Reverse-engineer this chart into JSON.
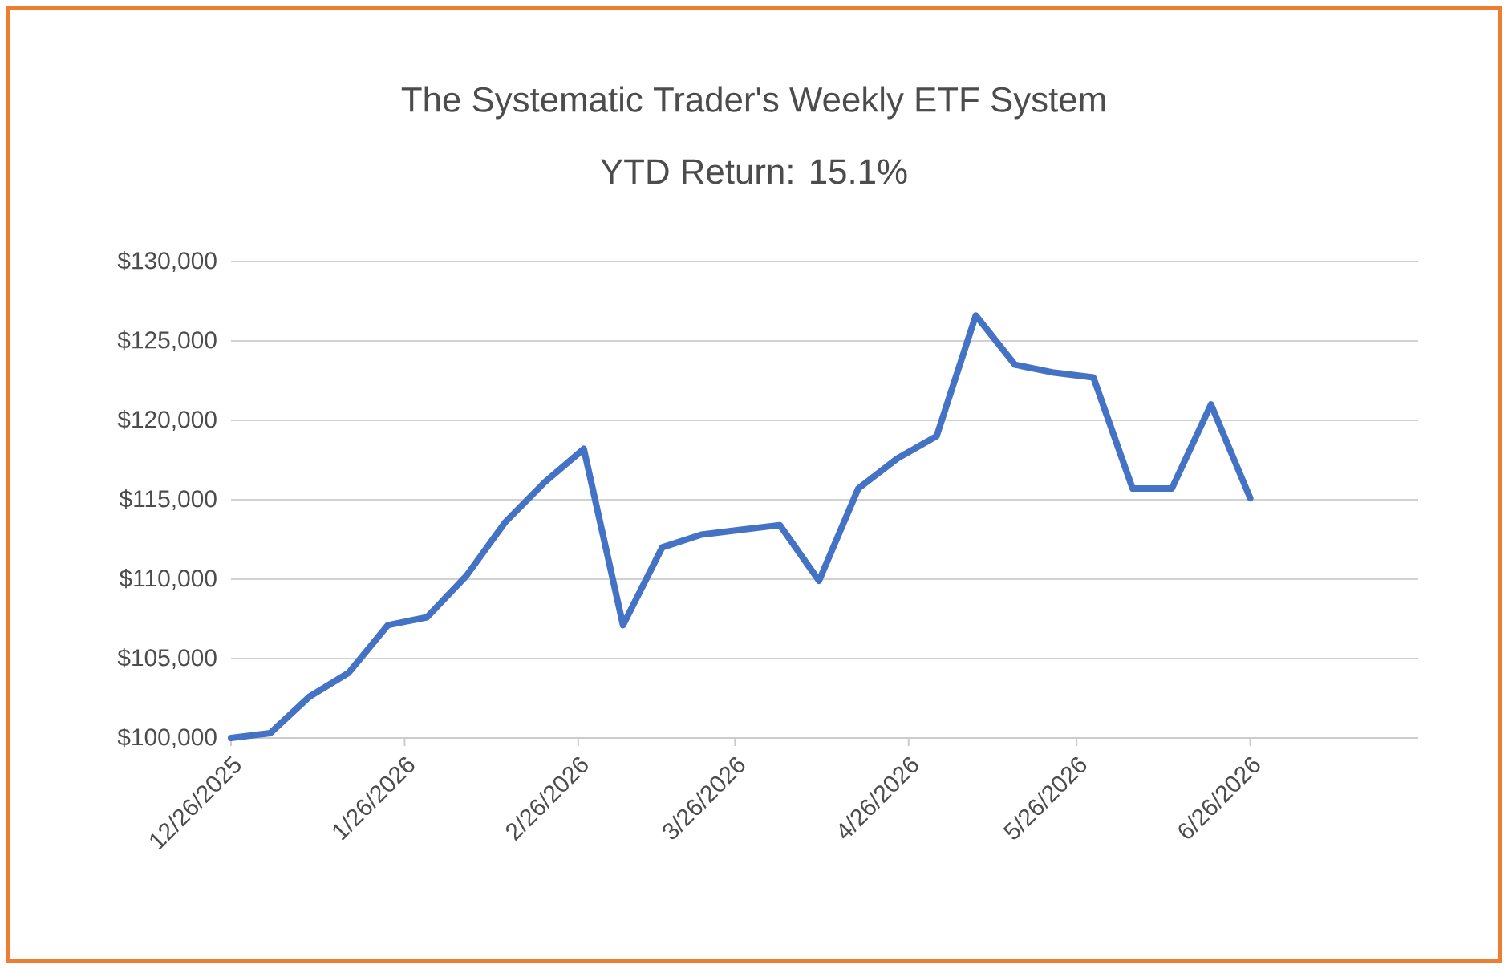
{
  "chart_data": {
    "type": "line",
    "title": "The Systematic Trader's Weekly ETF System",
    "subtitle": "YTD Return: 15.1%",
    "x": [
      "2025-12-26",
      "2026-01-02",
      "2026-01-09",
      "2026-01-16",
      "2026-01-23",
      "2026-01-30",
      "2026-02-06",
      "2026-02-13",
      "2026-02-20",
      "2026-02-27",
      "2026-03-06",
      "2026-03-13",
      "2026-03-20",
      "2026-03-27",
      "2026-04-03",
      "2026-04-10",
      "2026-04-17",
      "2026-04-24",
      "2026-05-01",
      "2026-05-08",
      "2026-05-15",
      "2026-05-22",
      "2026-05-29",
      "2026-06-05",
      "2026-06-12",
      "2026-06-19",
      "2026-06-26"
    ],
    "series": [
      {
        "color": "#4472c4",
        "values": [
          100000,
          100300,
          102600,
          104100,
          107100,
          107600,
          110200,
          113600,
          116100,
          118200,
          107100,
          112000,
          112800,
          113100,
          113400,
          109900,
          115700,
          117600,
          119000,
          126600,
          123500,
          123000,
          122700,
          115700,
          115700,
          121000,
          115100
        ]
      }
    ],
    "xlim": [
      "2025-12-26",
      "2026-07-26"
    ],
    "xticks": [
      {
        "value": "2025-12-26",
        "label": "12/26/2025"
      },
      {
        "value": "2026-01-26",
        "label": "1/26/2026"
      },
      {
        "value": "2026-02-26",
        "label": "2/26/2026"
      },
      {
        "value": "2026-03-26",
        "label": "3/26/2026"
      },
      {
        "value": "2026-04-26",
        "label": "4/26/2026"
      },
      {
        "value": "2026-05-26",
        "label": "5/26/2026"
      },
      {
        "value": "2026-06-26",
        "label": "6/26/2026"
      }
    ],
    "ylim": [
      100000,
      130000
    ],
    "yticks": [
      {
        "value": 100000,
        "label": "$100,000"
      },
      {
        "value": 105000,
        "label": "$105,000"
      },
      {
        "value": 110000,
        "label": "$110,000"
      },
      {
        "value": 115000,
        "label": "$115,000"
      },
      {
        "value": 120000,
        "label": "$120,000"
      },
      {
        "value": 125000,
        "label": "$125,000"
      },
      {
        "value": 130000,
        "label": "$130,000"
      }
    ],
    "grid": "y"
  }
}
